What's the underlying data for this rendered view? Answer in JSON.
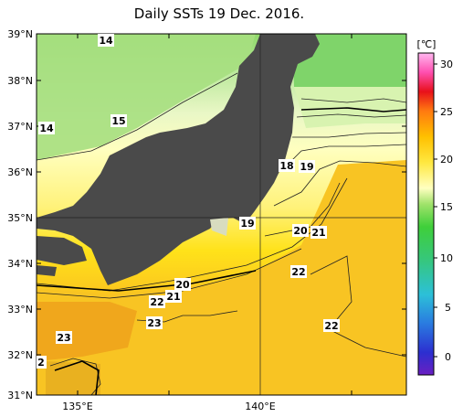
{
  "title": "Daily SSTs 19 Dec. 2016.",
  "unit": "[℃]",
  "lat_labels": [
    "39°N",
    "38°N",
    "37°N",
    "36°N",
    "35°N",
    "34°N",
    "33°N",
    "32°N",
    "31°N"
  ],
  "lon_labels": [
    "135°E",
    "140°E"
  ],
  "colorbar": {
    "ticks": [
      "30",
      "25",
      "20",
      "15",
      "10",
      "5",
      "0"
    ],
    "range": [
      -2,
      32
    ],
    "stops": [
      "#6a1fc2",
      "#2c2fd0",
      "#2a7be0",
      "#2cc0d8",
      "#36c77a",
      "#3fcf3a",
      "#9fe26a",
      "#d7f0b0",
      "#ffffc0",
      "#ffe840",
      "#ffc000",
      "#ff7a10",
      "#e8101a",
      "#ff4fb0",
      "#ffb8f0"
    ]
  },
  "contour_labels": [
    {
      "text": "14"
    },
    {
      "text": "14"
    },
    {
      "text": "15"
    },
    {
      "text": "18"
    },
    {
      "text": "19"
    },
    {
      "text": "19"
    },
    {
      "text": "20"
    },
    {
      "text": "21"
    },
    {
      "text": "22"
    },
    {
      "text": "20"
    },
    {
      "text": "21"
    },
    {
      "text": "22"
    },
    {
      "text": "23"
    },
    {
      "text": "22"
    },
    {
      "text": "23"
    },
    {
      "text": "2"
    }
  ],
  "colors": {
    "land": "#4a4a4a",
    "warm": "#f2b31d",
    "mid": "#ffe600"
  }
}
